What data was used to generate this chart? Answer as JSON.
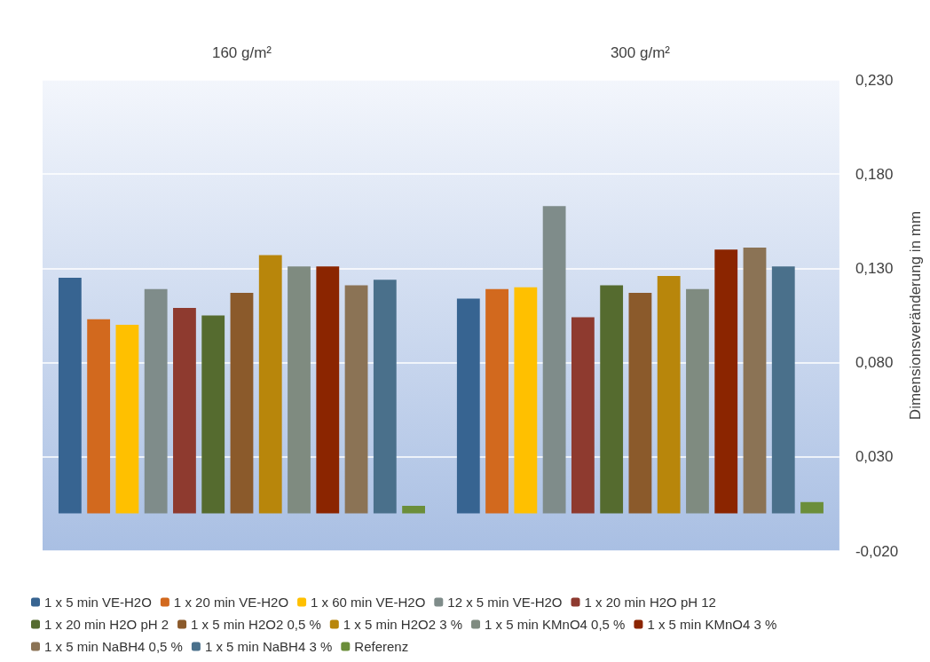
{
  "chart_data": {
    "type": "bar",
    "categories": [
      "160 g/m²",
      "300 g/m²"
    ],
    "ylabel": "Dimensionsveränderung in mm",
    "ylim": [
      -0.02,
      0.23
    ],
    "yticks": [
      {
        "value": -0.02,
        "label": "-0,020"
      },
      {
        "value": 0.03,
        "label": "0,030"
      },
      {
        "value": 0.08,
        "label": "0,080"
      },
      {
        "value": 0.13,
        "label": "0,130"
      },
      {
        "value": 0.18,
        "label": "0,180"
      },
      {
        "value": 0.23,
        "label": "0,230"
      }
    ],
    "grid": "y",
    "legend": "bottom",
    "series": [
      {
        "name": "1 x 5 min VE-H2O",
        "color": "#376491",
        "values": [
          0.125,
          0.114
        ]
      },
      {
        "name": "1 x 20 min VE-H2O",
        "color": "#d2691e",
        "values": [
          0.103,
          0.119
        ]
      },
      {
        "name": "1 x 60 min VE-H2O",
        "color": "#ffc000",
        "values": [
          0.1,
          0.12
        ]
      },
      {
        "name": "12 x 5 min VE-H2O",
        "color": "#7f8c8a",
        "values": [
          0.119,
          0.163
        ]
      },
      {
        "name": "1 x 20 min H2O pH 12",
        "color": "#8e3a2f",
        "values": [
          0.109,
          0.104
        ]
      },
      {
        "name": "1 x 20 min H2O pH 2",
        "color": "#556b2f",
        "values": [
          0.105,
          0.121
        ]
      },
      {
        "name": "1 x 5 min H2O2 0,5 %",
        "color": "#8b5a2b",
        "values": [
          0.117,
          0.117
        ]
      },
      {
        "name": "1 x 5 min H2O2 3 %",
        "color": "#b8860b",
        "values": [
          0.137,
          0.126
        ]
      },
      {
        "name": "1 x 5 min KMnO4 0,5 %",
        "color": "#7f8b80",
        "values": [
          0.131,
          0.119
        ]
      },
      {
        "name": "1 x 5 min KMnO4 3 %",
        "color": "#8b2500",
        "values": [
          0.131,
          0.14
        ]
      },
      {
        "name": "1 x 5 min NaBH4 0,5 %",
        "color": "#8b7355",
        "values": [
          0.121,
          0.141
        ]
      },
      {
        "name": "1 x 5 min NaBH4 3 %",
        "color": "#4a708b",
        "values": [
          0.124,
          0.131
        ]
      },
      {
        "name": "Referenz",
        "color": "#6b8e3a",
        "values": [
          0.004,
          0.006
        ]
      }
    ]
  }
}
